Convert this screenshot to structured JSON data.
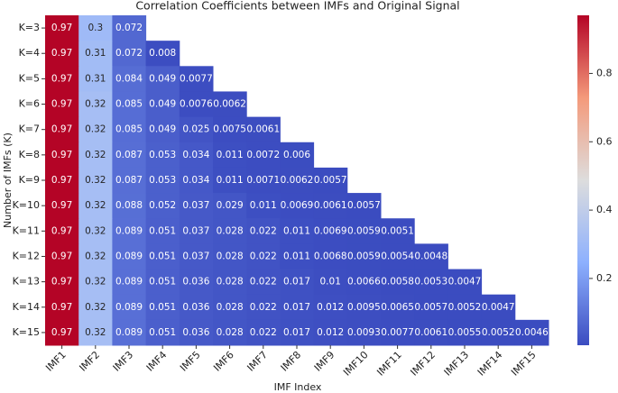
{
  "chart_data": {
    "type": "heatmap",
    "title": "Correlation Coefficients between IMFs and Original Signal",
    "xlabel": "IMF Index",
    "ylabel": "Number of IMFs (K)",
    "columns": [
      "IMF1",
      "IMF2",
      "IMF3",
      "IMF4",
      "IMF5",
      "IMF6",
      "IMF7",
      "IMF8",
      "IMF9",
      "IMF10",
      "IMF11",
      "IMF12",
      "IMF13",
      "IMF14",
      "IMF15"
    ],
    "rows": [
      "K=3",
      "K=4",
      "K=5",
      "K=6",
      "K=7",
      "K=8",
      "K=9",
      "K=10",
      "K=11",
      "K=12",
      "K=13",
      "K=14",
      "K=15"
    ],
    "values": [
      [
        0.97,
        0.3,
        0.072
      ],
      [
        0.97,
        0.31,
        0.072,
        0.008
      ],
      [
        0.97,
        0.31,
        0.084,
        0.049,
        0.0077
      ],
      [
        0.97,
        0.32,
        0.085,
        0.049,
        0.0076,
        0.0062
      ],
      [
        0.97,
        0.32,
        0.085,
        0.049,
        0.025,
        0.0075,
        0.0061
      ],
      [
        0.97,
        0.32,
        0.087,
        0.053,
        0.034,
        0.011,
        0.0072,
        0.006
      ],
      [
        0.97,
        0.32,
        0.087,
        0.053,
        0.034,
        0.011,
        0.0071,
        0.0062,
        0.0057
      ],
      [
        0.97,
        0.32,
        0.088,
        0.052,
        0.037,
        0.029,
        0.011,
        0.0069,
        0.0061,
        0.0057
      ],
      [
        0.97,
        0.32,
        0.089,
        0.051,
        0.037,
        0.028,
        0.022,
        0.011,
        0.0069,
        0.0059,
        0.0051
      ],
      [
        0.97,
        0.32,
        0.089,
        0.051,
        0.037,
        0.028,
        0.022,
        0.011,
        0.0068,
        0.0059,
        0.0054,
        0.0048
      ],
      [
        0.97,
        0.32,
        0.089,
        0.051,
        0.036,
        0.028,
        0.022,
        0.017,
        0.01,
        0.0066,
        0.0058,
        0.0053,
        0.0047
      ],
      [
        0.97,
        0.32,
        0.089,
        0.051,
        0.036,
        0.028,
        0.022,
        0.017,
        0.012,
        0.0095,
        0.0065,
        0.0057,
        0.0052,
        0.0047
      ],
      [
        0.97,
        0.32,
        0.089,
        0.051,
        0.036,
        0.028,
        0.022,
        0.017,
        0.012,
        0.0093,
        0.0077,
        0.0061,
        0.0055,
        0.0052,
        0.0046
      ]
    ],
    "colormap": [
      "#3b4cc0",
      "#8db0fe",
      "#dddddd",
      "#f49a7b",
      "#b40426"
    ],
    "clim": [
      0.0046,
      0.97
    ],
    "cticks": [
      0.2,
      0.4,
      0.6,
      0.8
    ]
  }
}
